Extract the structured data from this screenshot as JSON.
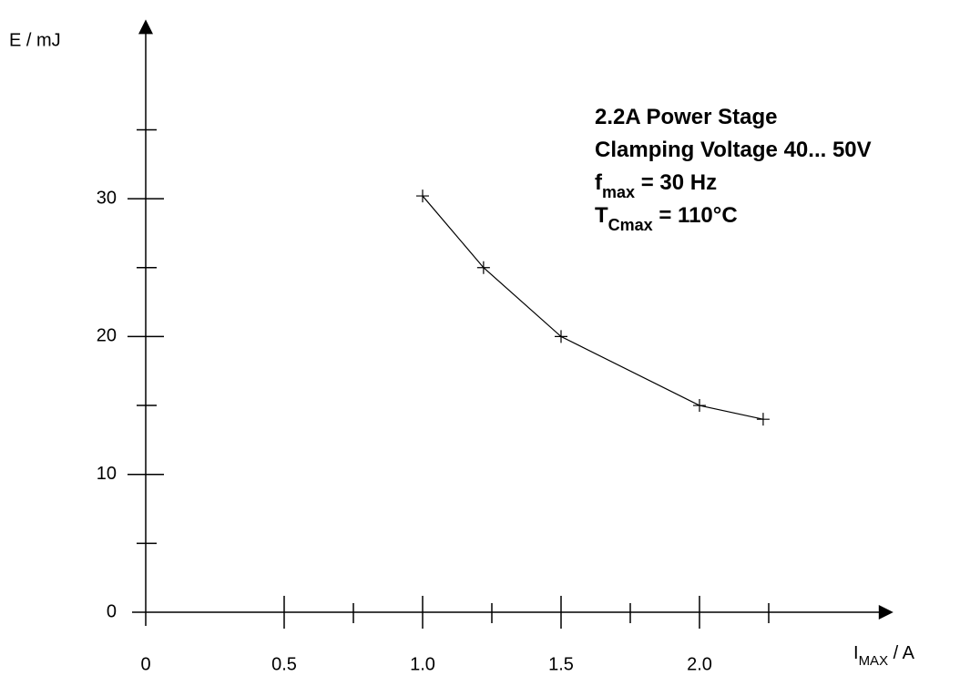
{
  "chart_data": {
    "type": "line",
    "ylabel": "E / mJ",
    "xlabel": [
      "I",
      "MAX",
      " / A"
    ],
    "annotations": [
      [
        "2.2A Power Stage"
      ],
      [
        "Clamping Voltage 40... 50V"
      ],
      [
        "f",
        "max",
        " = 30 Hz"
      ],
      [
        "T",
        "Cmax",
        " = 110°C"
      ]
    ],
    "x": [
      1.0,
      1.22,
      1.5,
      2.0,
      2.23
    ],
    "series": [
      {
        "color": "#000000",
        "values": [
          30.2,
          25,
          20,
          15,
          14
        ]
      }
    ],
    "xlim": [
      0,
      2.7
    ],
    "ylim": [
      0,
      43
    ],
    "xticks": [
      0,
      0.5,
      {
        "value": 1,
        "label": "1.0"
      },
      1.5,
      {
        "value": 2,
        "label": "2.0"
      }
    ],
    "xminor_ticks": [
      0.75,
      1.25,
      1.75,
      2.25
    ],
    "yticks": [
      0,
      10,
      20,
      30
    ],
    "yminor_ticks": [
      5,
      15,
      25,
      35
    ],
    "grid": false
  }
}
